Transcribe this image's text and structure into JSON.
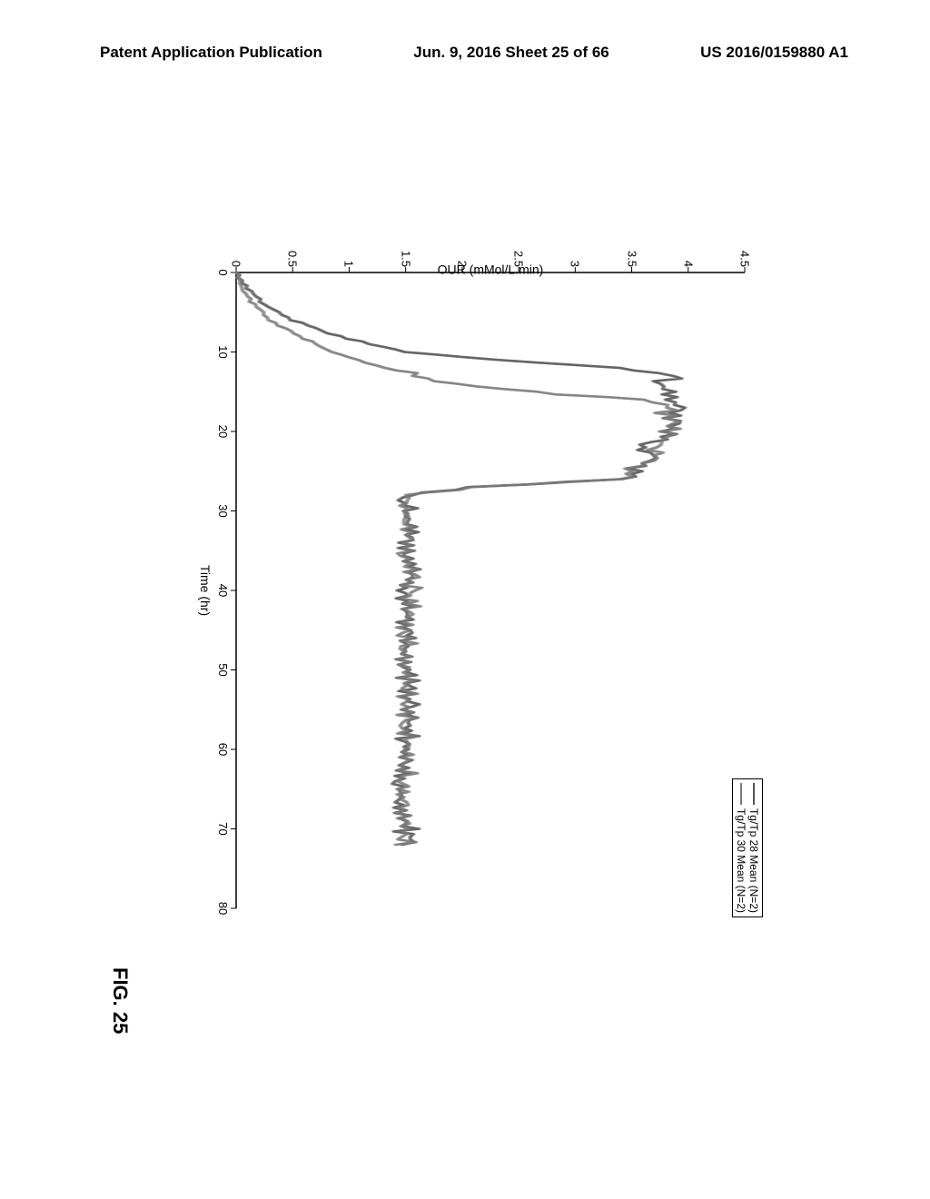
{
  "header": {
    "left": "Patent Application Publication",
    "center": "Jun. 9, 2016  Sheet 25 of 66",
    "right": "US 2016/0159880 A1"
  },
  "figure_label": "FIG. 25",
  "chart": {
    "type": "line",
    "xlabel": "Time (hr)",
    "ylabel": "OUR (mMol/L.min)",
    "xlim": [
      0,
      80
    ],
    "ylim": [
      0,
      4.5
    ],
    "xtick_step": 10,
    "ytick_step": 0.5,
    "xticks": [
      0,
      10,
      20,
      30,
      40,
      50,
      60,
      70,
      80
    ],
    "yticks": [
      0,
      0.5,
      1,
      1.5,
      2,
      2.5,
      3,
      3.5,
      4,
      4.5
    ],
    "background_color": "#ffffff",
    "axis_color": "#000000",
    "tick_fontsize": 13,
    "label_fontsize": 14,
    "legend": {
      "position": "top-right",
      "items": [
        {
          "label": "Tg/Tp 28 Mean (N=2)",
          "color": "#555555",
          "line_width": 2
        },
        {
          "label": "Tg/Tp 30 Mean (N=2)",
          "color": "#7a7a7a",
          "line_width": 2
        }
      ]
    },
    "series": [
      {
        "name": "Tg/Tp 28 Mean (N=2)",
        "color": "#555555",
        "line_width": 2.5,
        "x": [
          0,
          2,
          4,
          6,
          8,
          10,
          11,
          12,
          13,
          14,
          15,
          16,
          17,
          18,
          19,
          20,
          21,
          22,
          23,
          24,
          25,
          26,
          27,
          28,
          30,
          35,
          40,
          45,
          50,
          55,
          60,
          65,
          70,
          72
        ],
        "y": [
          0,
          0.1,
          0.25,
          0.5,
          0.9,
          1.5,
          2.3,
          3.4,
          3.9,
          3.7,
          3.85,
          3.9,
          3.95,
          3.85,
          3.9,
          3.8,
          3.75,
          3.6,
          3.7,
          3.6,
          3.55,
          3.4,
          2.1,
          1.5,
          1.5,
          1.55,
          1.5,
          1.5,
          1.5,
          1.55,
          1.5,
          1.45,
          1.5,
          1.5
        ],
        "noise": 0.12
      },
      {
        "name": "Tg/Tp 30 Mean (N=2)",
        "color": "#7a7a7a",
        "line_width": 2.5,
        "x": [
          0,
          2,
          4,
          6,
          8,
          10,
          12,
          14,
          15,
          16,
          17,
          18,
          19,
          20,
          21,
          22,
          23,
          24,
          25,
          26,
          27,
          28,
          30,
          35,
          40,
          45,
          50,
          55,
          60,
          65,
          70,
          72
        ],
        "y": [
          0,
          0.05,
          0.15,
          0.3,
          0.55,
          0.85,
          1.3,
          1.9,
          2.6,
          3.6,
          3.85,
          3.8,
          3.9,
          3.85,
          3.8,
          3.7,
          3.75,
          3.6,
          3.5,
          3.4,
          2.1,
          1.5,
          1.5,
          1.5,
          1.55,
          1.5,
          1.5,
          1.5,
          1.5,
          1.48,
          1.5,
          1.5
        ],
        "noise": 0.12
      }
    ]
  }
}
